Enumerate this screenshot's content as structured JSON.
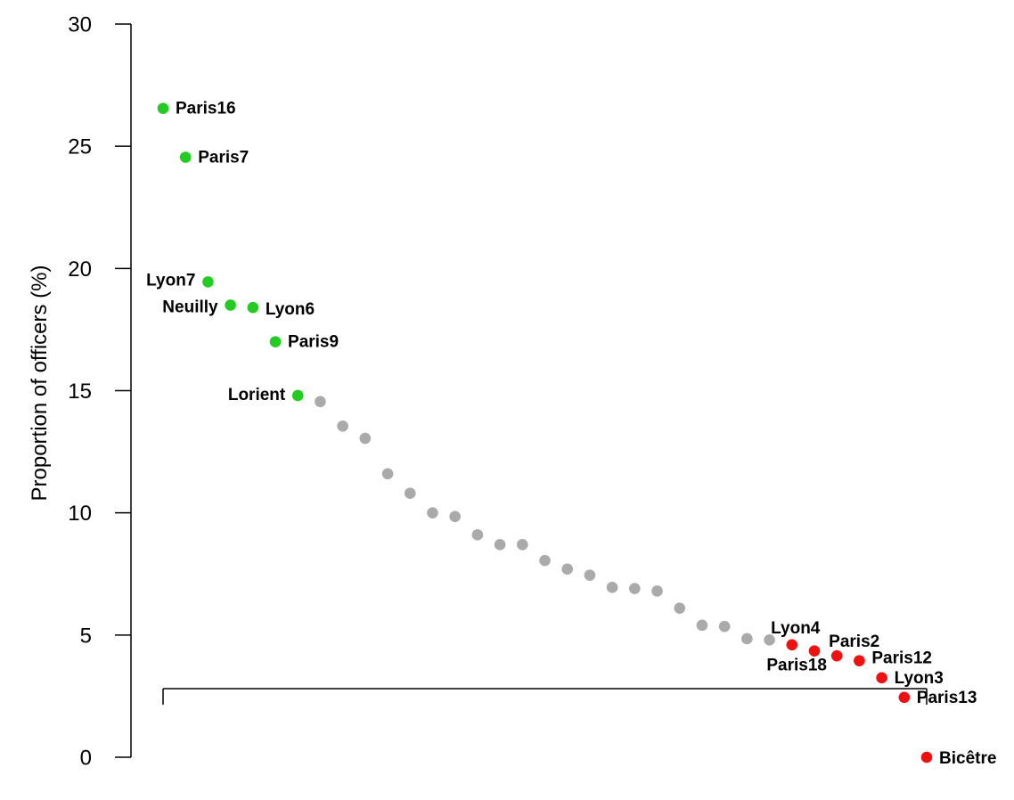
{
  "chart_data": {
    "type": "scatter",
    "title": "",
    "xlabel": "",
    "ylabel": "Proportion of officers (%)",
    "ylim": [
      0,
      30
    ],
    "yticks": [
      0,
      5,
      10,
      15,
      20,
      25,
      30
    ],
    "yticks_text": [
      "0",
      "5",
      "10",
      "15",
      "20",
      "25",
      "30"
    ],
    "grid": false,
    "colors": {
      "top": "#22cc22",
      "middle": "#aaaaaa",
      "bottom": "#ee1111"
    },
    "points": [
      {
        "rank": 1,
        "y": 26.55,
        "label": "Paris16",
        "group": "top"
      },
      {
        "rank": 2,
        "y": 24.55,
        "label": "Paris7",
        "group": "top"
      },
      {
        "rank": 3,
        "y": 19.45,
        "label": "Lyon7",
        "group": "top"
      },
      {
        "rank": 4,
        "y": 18.5,
        "label": "Neuilly",
        "group": "top"
      },
      {
        "rank": 5,
        "y": 18.4,
        "label": "Lyon6",
        "group": "top"
      },
      {
        "rank": 6,
        "y": 17.0,
        "label": "Paris9",
        "group": "top"
      },
      {
        "rank": 7,
        "y": 14.8,
        "label": "Lorient",
        "group": "top"
      },
      {
        "rank": 8,
        "y": 14.55,
        "label": "",
        "group": "middle"
      },
      {
        "rank": 9,
        "y": 13.55,
        "label": "",
        "group": "middle"
      },
      {
        "rank": 10,
        "y": 13.05,
        "label": "",
        "group": "middle"
      },
      {
        "rank": 11,
        "y": 11.6,
        "label": "",
        "group": "middle"
      },
      {
        "rank": 12,
        "y": 10.8,
        "label": "",
        "group": "middle"
      },
      {
        "rank": 13,
        "y": 10.0,
        "label": "",
        "group": "middle"
      },
      {
        "rank": 14,
        "y": 9.85,
        "label": "",
        "group": "middle"
      },
      {
        "rank": 15,
        "y": 9.1,
        "label": "",
        "group": "middle"
      },
      {
        "rank": 16,
        "y": 8.7,
        "label": "",
        "group": "middle"
      },
      {
        "rank": 17,
        "y": 8.7,
        "label": "",
        "group": "middle"
      },
      {
        "rank": 18,
        "y": 8.05,
        "label": "",
        "group": "middle"
      },
      {
        "rank": 19,
        "y": 7.7,
        "label": "",
        "group": "middle"
      },
      {
        "rank": 20,
        "y": 7.45,
        "label": "",
        "group": "middle"
      },
      {
        "rank": 21,
        "y": 6.95,
        "label": "",
        "group": "middle"
      },
      {
        "rank": 22,
        "y": 6.9,
        "label": "",
        "group": "middle"
      },
      {
        "rank": 23,
        "y": 6.8,
        "label": "",
        "group": "middle"
      },
      {
        "rank": 24,
        "y": 6.1,
        "label": "",
        "group": "middle"
      },
      {
        "rank": 25,
        "y": 5.4,
        "label": "",
        "group": "middle"
      },
      {
        "rank": 26,
        "y": 5.35,
        "label": "",
        "group": "middle"
      },
      {
        "rank": 27,
        "y": 4.85,
        "label": "",
        "group": "middle"
      },
      {
        "rank": 28,
        "y": 4.8,
        "label": "",
        "group": "middle"
      },
      {
        "rank": 29,
        "y": 4.6,
        "label": "Lyon4",
        "group": "bottom"
      },
      {
        "rank": 30,
        "y": 4.35,
        "label": "Paris18",
        "group": "bottom"
      },
      {
        "rank": 31,
        "y": 4.15,
        "label": "Paris2",
        "group": "bottom"
      },
      {
        "rank": 32,
        "y": 3.95,
        "label": "Paris12",
        "group": "bottom"
      },
      {
        "rank": 33,
        "y": 3.25,
        "label": "Lyon3",
        "group": "bottom"
      },
      {
        "rank": 34,
        "y": 2.45,
        "label": "Paris13",
        "group": "bottom"
      },
      {
        "rank": 35,
        "y": 0.0,
        "label": "Bicêtre",
        "group": "bottom"
      }
    ]
  }
}
